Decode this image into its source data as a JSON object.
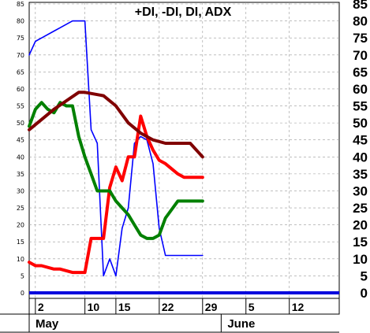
{
  "chart_data": {
    "type": "line",
    "title": "+DI, -DI, DI, ADX",
    "ylim": [
      0,
      85
    ],
    "y_ticks": [
      0,
      5,
      10,
      15,
      20,
      25,
      30,
      35,
      40,
      45,
      50,
      55,
      60,
      65,
      70,
      75,
      80,
      85
    ],
    "x_tick_labels": [
      {
        "day": 2,
        "label": "2"
      },
      {
        "day": 10,
        "label": "10"
      },
      {
        "day": 15,
        "label": "15"
      },
      {
        "day": 22,
        "label": "22"
      },
      {
        "day": 29,
        "label": "29"
      },
      {
        "day": 36,
        "label": "5"
      },
      {
        "day": 43,
        "label": "12"
      }
    ],
    "month_labels": [
      {
        "day": 1,
        "label": "May"
      },
      {
        "day": 32,
        "label": "June"
      }
    ],
    "grid": true,
    "series": [
      {
        "color": "#0000ff",
        "x": [
          1,
          2,
          3,
          5,
          6,
          8,
          10,
          11,
          12,
          13,
          14,
          15,
          16,
          17,
          18,
          19,
          20,
          21,
          22,
          23,
          25,
          26,
          27,
          29
        ],
        "values": [
          70,
          74,
          75,
          77,
          78,
          80,
          80,
          48,
          44,
          5,
          10,
          5,
          19,
          25,
          44,
          46,
          45,
          38,
          19,
          11,
          11,
          11,
          11,
          11
        ]
      },
      {
        "color": "#ff0000",
        "x": [
          1,
          2,
          3,
          5,
          6,
          8,
          9,
          10,
          11,
          12,
          13,
          14,
          15,
          16,
          17,
          18,
          19,
          20,
          21,
          22,
          23,
          25,
          26,
          27,
          29
        ],
        "values": [
          9,
          8,
          8,
          7,
          7,
          6,
          6,
          6,
          16,
          16,
          16,
          31,
          37,
          33,
          40,
          40,
          52,
          46,
          42,
          39,
          38,
          35,
          34,
          34,
          34
        ]
      },
      {
        "color": "#008000",
        "x": [
          1,
          2,
          3,
          4,
          5,
          6,
          7,
          8,
          9,
          10,
          11,
          12,
          13,
          14,
          15,
          16,
          17,
          18,
          19,
          20,
          21,
          22,
          23,
          25,
          27,
          29
        ],
        "values": [
          49,
          54,
          56,
          54,
          53,
          56,
          55,
          55,
          46,
          40,
          35,
          30,
          30,
          30,
          27,
          25,
          23,
          20,
          17,
          16,
          16,
          17,
          22,
          27,
          27,
          27
        ]
      },
      {
        "color": "#800000",
        "x": [
          1,
          5,
          9,
          10,
          13,
          15,
          17,
          19,
          21,
          23,
          25,
          27,
          29
        ],
        "values": [
          48,
          54,
          59,
          59,
          58,
          55,
          50,
          47,
          45,
          44,
          44,
          44,
          40
        ]
      }
    ],
    "baseline": {
      "value": 0,
      "color": "#0000dd"
    }
  }
}
